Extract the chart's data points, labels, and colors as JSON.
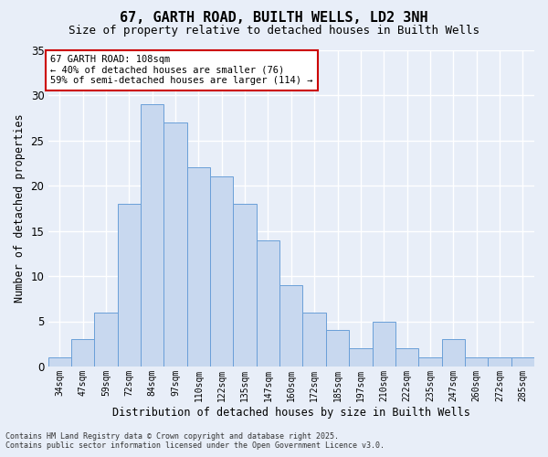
{
  "title_line1": "67, GARTH ROAD, BUILTH WELLS, LD2 3NH",
  "title_line2": "Size of property relative to detached houses in Builth Wells",
  "xlabel": "Distribution of detached houses by size in Builth Wells",
  "ylabel": "Number of detached properties",
  "categories": [
    "34sqm",
    "47sqm",
    "59sqm",
    "72sqm",
    "84sqm",
    "97sqm",
    "110sqm",
    "122sqm",
    "135sqm",
    "147sqm",
    "160sqm",
    "172sqm",
    "185sqm",
    "197sqm",
    "210sqm",
    "222sqm",
    "235sqm",
    "247sqm",
    "260sqm",
    "272sqm",
    "285sqm"
  ],
  "values": [
    1,
    3,
    6,
    18,
    29,
    27,
    22,
    21,
    18,
    14,
    9,
    6,
    4,
    2,
    5,
    2,
    1,
    3,
    1,
    1,
    1
  ],
  "bar_color": "#c8d8ef",
  "bar_edge_color": "#6a9fd8",
  "background_color": "#e8eef8",
  "grid_color": "#ffffff",
  "annotation_text": "67 GARTH ROAD: 108sqm\n← 40% of detached houses are smaller (76)\n59% of semi-detached houses are larger (114) →",
  "annotation_box_color": "#ffffff",
  "annotation_box_edge": "#cc0000",
  "ylim": [
    0,
    35
  ],
  "yticks": [
    0,
    5,
    10,
    15,
    20,
    25,
    30,
    35
  ],
  "footer_line1": "Contains HM Land Registry data © Crown copyright and database right 2025.",
  "footer_line2": "Contains public sector information licensed under the Open Government Licence v3.0."
}
